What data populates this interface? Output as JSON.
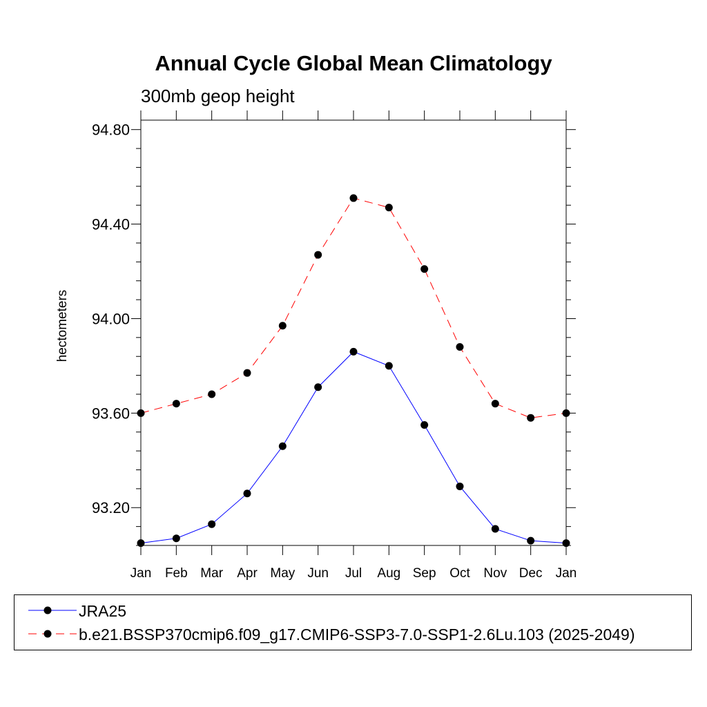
{
  "chart_data": {
    "type": "line",
    "title": "Annual Cycle Global Mean Climatology",
    "subtitle": "300mb geop height",
    "xlabel": "",
    "ylabel": "hectometers",
    "categories": [
      "Jan",
      "Feb",
      "Mar",
      "Apr",
      "May",
      "Jun",
      "Jul",
      "Aug",
      "Sep",
      "Oct",
      "Nov",
      "Dec",
      "Jan"
    ],
    "ylim": [
      93.04,
      94.84
    ],
    "yticks": [
      93.2,
      93.6,
      94.0,
      94.4,
      94.8
    ],
    "ytick_labels": [
      "93.20",
      "93.60",
      "94.00",
      "94.40",
      "94.80"
    ],
    "grid": false,
    "legend_position": "bottom",
    "series": [
      {
        "name": "JRA25",
        "color": "#0000ff",
        "style": "solid",
        "marker": "filled-circle",
        "values": [
          93.05,
          93.07,
          93.13,
          93.26,
          93.46,
          93.71,
          93.86,
          93.8,
          93.55,
          93.29,
          93.11,
          93.06,
          93.05
        ]
      },
      {
        "name": "b.e21.BSSP370cmip6.f09_g17.CMIP6-SSP3-7.0-SSP1-2.6Lu.103 (2025-2049)",
        "color": "#ff0000",
        "style": "dashed",
        "marker": "filled-circle",
        "values": [
          93.6,
          93.64,
          93.68,
          93.77,
          93.97,
          94.27,
          94.51,
          94.47,
          94.21,
          93.88,
          93.64,
          93.58,
          93.6
        ]
      }
    ]
  }
}
